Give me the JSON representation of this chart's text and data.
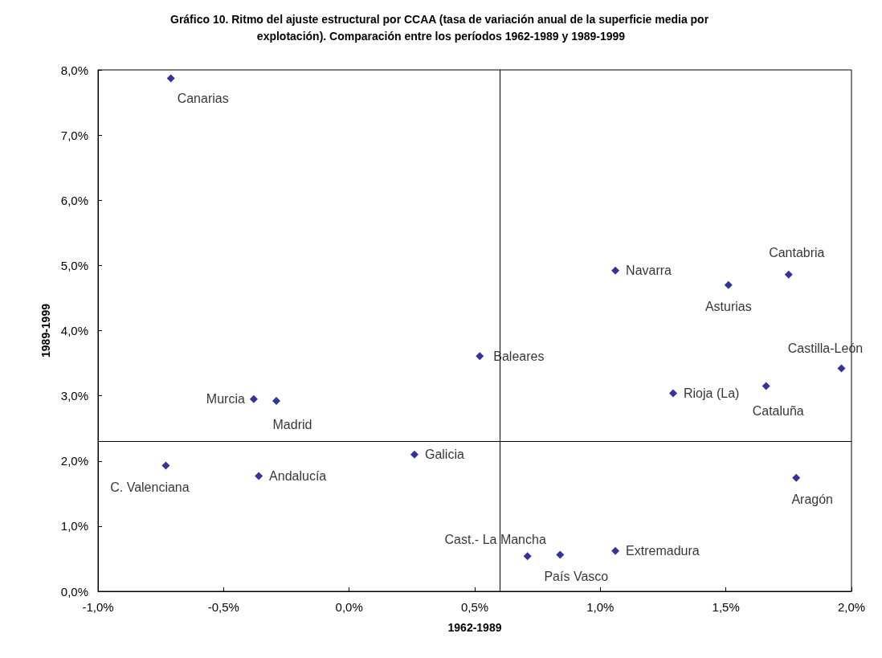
{
  "chart_data": {
    "type": "scatter",
    "title": "Gráfico 10. Ritmo del ajuste estructural por CCAA (tasa de variación anual de la superficie media por explotación). Comparación entre los períodos 1962-1989 y 1989-1999",
    "xlabel": "1962-1989",
    "ylabel": "1989-1999",
    "marker": "diamond",
    "grid": false,
    "legend": false,
    "xlim": [
      -1.0,
      2.0
    ],
    "ylim": [
      0.0,
      8.0
    ],
    "xticks": [
      {
        "value": -1.0,
        "label": "-1,0%"
      },
      {
        "value": -0.5,
        "label": "-0,5%"
      },
      {
        "value": 0.0,
        "label": "0,0%"
      },
      {
        "value": 0.5,
        "label": "0,5%"
      },
      {
        "value": 1.0,
        "label": "1,0%"
      },
      {
        "value": 1.5,
        "label": "1,5%"
      },
      {
        "value": 2.0,
        "label": "2,0%"
      }
    ],
    "yticks": [
      {
        "value": 0.0,
        "label": "0,0%"
      },
      {
        "value": 1.0,
        "label": "1,0%"
      },
      {
        "value": 2.0,
        "label": "2,0%"
      },
      {
        "value": 3.0,
        "label": "3,0%"
      },
      {
        "value": 4.0,
        "label": "4,0%"
      },
      {
        "value": 5.0,
        "label": "5,0%"
      },
      {
        "value": 6.0,
        "label": "6,0%"
      },
      {
        "value": 7.0,
        "label": "7,0%"
      },
      {
        "value": 8.0,
        "label": "8,0%"
      }
    ],
    "ref_lines": [
      {
        "axis": "x",
        "value": 0.6,
        "color": "#000000"
      },
      {
        "axis": "y",
        "value": 2.3,
        "color": "#000000"
      }
    ],
    "series": [
      {
        "name": "Andalucía",
        "color": "#000080",
        "x": [
          -0.36
        ],
        "values": [
          1.77
        ]
      },
      {
        "name": "Aragón",
        "color": "#000080",
        "x": [
          1.78
        ],
        "values": [
          1.74
        ]
      },
      {
        "name": "Asturias",
        "color": "#000080",
        "x": [
          1.51
        ],
        "values": [
          4.7
        ]
      },
      {
        "name": "Baleares",
        "color": "#000080",
        "x": [
          0.52
        ],
        "values": [
          3.61
        ]
      },
      {
        "name": "Canarias",
        "color": "#000080",
        "x": [
          -0.71
        ],
        "values": [
          7.87
        ]
      },
      {
        "name": "Cantabria",
        "color": "#000080",
        "x": [
          1.75
        ],
        "values": [
          4.86
        ]
      },
      {
        "name": "Castilla-León",
        "color": "#000080",
        "x": [
          1.96
        ],
        "values": [
          3.42
        ]
      },
      {
        "name": "Cataluña",
        "color": "#000080",
        "x": [
          1.66
        ],
        "values": [
          3.15
        ]
      },
      {
        "name": "C. Valenciana",
        "color": "#000080",
        "x": [
          -0.73
        ],
        "values": [
          1.93
        ]
      },
      {
        "name": "Cast.- La Mancha",
        "color": "#000080",
        "x": [
          0.71
        ],
        "values": [
          0.54
        ]
      },
      {
        "name": "Extremadura",
        "color": "#000080",
        "x": [
          1.06
        ],
        "values": [
          0.62
        ]
      },
      {
        "name": "Galicia",
        "color": "#000080",
        "x": [
          0.26
        ],
        "values": [
          2.1
        ]
      },
      {
        "name": "Madrid",
        "color": "#000080",
        "x": [
          -0.29
        ],
        "values": [
          2.92
        ]
      },
      {
        "name": "Murcia",
        "color": "#000080",
        "x": [
          -0.38
        ],
        "values": [
          2.95
        ]
      },
      {
        "name": "Navarra",
        "color": "#000080",
        "x": [
          1.06
        ],
        "values": [
          4.92
        ]
      },
      {
        "name": "País Vasco",
        "color": "#000080",
        "x": [
          0.84
        ],
        "values": [
          0.56
        ]
      },
      {
        "name": "Rioja (La)",
        "color": "#000080",
        "x": [
          1.29
        ],
        "values": [
          3.04
        ]
      }
    ]
  }
}
